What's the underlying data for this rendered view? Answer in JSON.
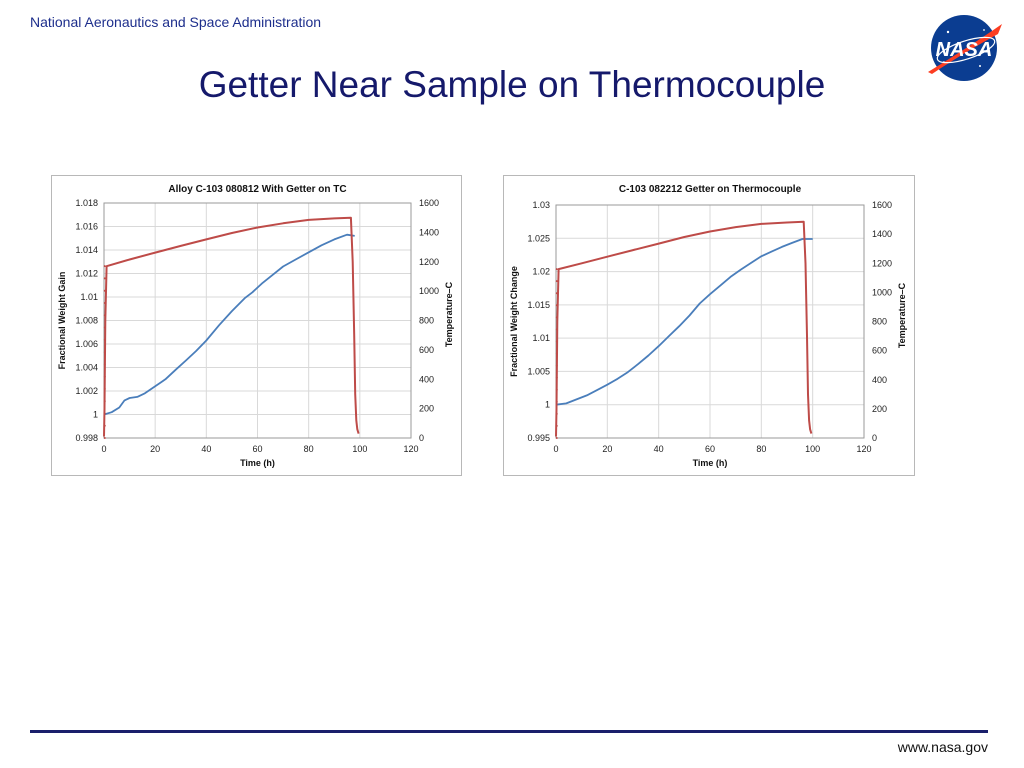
{
  "header": {
    "agency": "National Aeronautics and Space Administration",
    "title": "Getter Near Sample on Thermocouple",
    "logo_text": "NASA"
  },
  "footer": {
    "url": "www.nasa.gov"
  },
  "colors": {
    "weight_series": "#4a7ebb",
    "temperature_series": "#be4b48",
    "title": "#15196b",
    "agency": "#1d2e8c"
  },
  "chart_data": [
    {
      "type": "line",
      "title": "Alloy C-103 080812  With Getter on TC",
      "xlabel": "Time (h)",
      "ylabel": "Fractional Weight Gain",
      "y2label": "Temperature–C",
      "xlim": [
        0,
        120
      ],
      "x_ticks": [
        0,
        20,
        40,
        60,
        80,
        100,
        120
      ],
      "ylim": [
        0.998,
        1.018
      ],
      "y_ticks": [
        0.998,
        1,
        1.002,
        1.004,
        1.006,
        1.008,
        1.01,
        1.012,
        1.014,
        1.016,
        1.018
      ],
      "y_tick_labels": [
        "0.998",
        "1",
        "1.002",
        "1.004",
        "1.006",
        "1.008",
        "1.01",
        "1.012",
        "1.014",
        "1.016",
        "1.018"
      ],
      "y2lim": [
        0,
        1600
      ],
      "y2_ticks": [
        0,
        200,
        400,
        600,
        800,
        1000,
        1200,
        1400,
        1600
      ],
      "grid": true,
      "series": [
        {
          "axis": "left",
          "color": "#4a7ebb",
          "x": [
            0,
            3,
            6,
            8,
            10,
            13,
            16,
            20,
            24,
            28,
            32,
            36,
            40,
            45,
            50,
            55,
            58,
            62,
            66,
            70,
            75,
            80,
            85,
            90,
            95,
            98
          ],
          "y": [
            1.0,
            1.0002,
            1.0006,
            1.0012,
            1.0014,
            1.0015,
            1.0018,
            1.0024,
            1.003,
            1.0038,
            1.0046,
            1.0054,
            1.0063,
            1.0076,
            1.0088,
            1.0099,
            1.0104,
            1.0112,
            1.0119,
            1.0126,
            1.0132,
            1.0138,
            1.0144,
            1.0149,
            1.0153,
            1.0152
          ]
        },
        {
          "axis": "right",
          "color": "#be4b48",
          "x": [
            0,
            0.2,
            0.5,
            1,
            10,
            20,
            30,
            40,
            50,
            60,
            70,
            80,
            90,
            96.5,
            97.2,
            97.8,
            98.2,
            98.6,
            99,
            99.5
          ],
          "y": [
            10,
            200,
            800,
            1170,
            1215,
            1262,
            1308,
            1352,
            1396,
            1433,
            1462,
            1485,
            1495,
            1500,
            1200,
            700,
            300,
            120,
            60,
            30
          ]
        }
      ]
    },
    {
      "type": "line",
      "title": "C-103 082212 Getter on Thermocouple",
      "xlabel": "Time (h)",
      "ylabel": "Fractional Weight Change",
      "y2label": "Temperature–C",
      "xlim": [
        0,
        120
      ],
      "x_ticks": [
        0,
        20,
        40,
        60,
        80,
        100,
        120
      ],
      "ylim": [
        0.995,
        1.03
      ],
      "y_ticks": [
        0.995,
        1,
        1.005,
        1.01,
        1.015,
        1.02,
        1.025,
        1.03
      ],
      "y_tick_labels": [
        "0.995",
        "1",
        "1.005",
        "1.01",
        "1.015",
        "1.02",
        "1.025",
        "1.03"
      ],
      "y2lim": [
        0,
        1600
      ],
      "y2_ticks": [
        0,
        200,
        400,
        600,
        800,
        1000,
        1200,
        1400,
        1600
      ],
      "grid": true,
      "series": [
        {
          "axis": "left",
          "color": "#4a7ebb",
          "x": [
            0,
            4,
            8,
            12,
            16,
            20,
            24,
            28,
            32,
            36,
            40,
            44,
            48,
            52,
            56,
            60,
            64,
            68,
            72,
            76,
            80,
            84,
            88,
            92,
            96,
            100
          ],
          "y": [
            1.0,
            1.0002,
            1.0008,
            1.0014,
            1.0022,
            1.003,
            1.0039,
            1.0049,
            1.0061,
            1.0074,
            1.0088,
            1.0103,
            1.0118,
            1.0134,
            1.0152,
            1.0166,
            1.0179,
            1.0192,
            1.0203,
            1.0213,
            1.0223,
            1.023,
            1.0237,
            1.0243,
            1.0249,
            1.0249
          ]
        },
        {
          "axis": "right",
          "color": "#be4b48",
          "x": [
            0,
            0.2,
            0.5,
            1,
            10,
            20,
            30,
            40,
            50,
            60,
            70,
            80,
            90,
            96.5,
            97.2,
            97.8,
            98.2,
            98.6,
            99,
            99.5
          ],
          "y": [
            10,
            200,
            800,
            1160,
            1200,
            1245,
            1290,
            1335,
            1380,
            1418,
            1448,
            1470,
            1480,
            1485,
            1200,
            700,
            300,
            120,
            60,
            30
          ]
        }
      ]
    }
  ]
}
